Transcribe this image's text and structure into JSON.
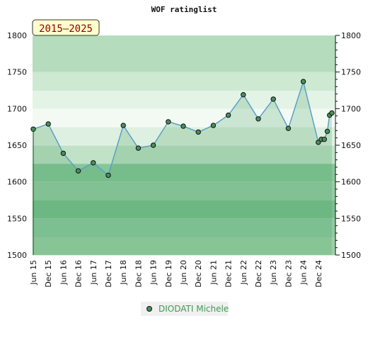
{
  "chart_data": {
    "type": "line",
    "title": "WOF ratinglist",
    "badge": "2015–2025",
    "ylim": [
      1500,
      1800
    ],
    "yticks": [
      1500,
      1550,
      1600,
      1650,
      1700,
      1750,
      1800
    ],
    "x_labels": [
      "Jun 15",
      "Dec 15",
      "Jun 16",
      "Dec 16",
      "Jun 17",
      "Dec 17",
      "Jun 18",
      "Dec 18",
      "Jun 19",
      "Dec 19",
      "Jun 20",
      "Dec 20",
      "Jun 21",
      "Dec 21",
      "Jun 22",
      "Dec 22",
      "Jun 23",
      "Dec 23",
      "Jun 24",
      "Dec 24"
    ],
    "grid": true,
    "legend_position": "bottom",
    "series": [
      {
        "name": "DIODATI Michele",
        "color": "#5aa0c8",
        "marker_color": "#4a8f5a",
        "points": [
          {
            "x": 0.0,
            "y": 1672
          },
          {
            "x": 1.0,
            "y": 1679
          },
          {
            "x": 2.0,
            "y": 1639
          },
          {
            "x": 3.0,
            "y": 1615
          },
          {
            "x": 4.0,
            "y": 1626
          },
          {
            "x": 5.0,
            "y": 1609
          },
          {
            "x": 6.0,
            "y": 1677
          },
          {
            "x": 7.0,
            "y": 1646
          },
          {
            "x": 8.0,
            "y": 1650
          },
          {
            "x": 9.0,
            "y": 1682
          },
          {
            "x": 10.0,
            "y": 1676
          },
          {
            "x": 11.0,
            "y": 1668
          },
          {
            "x": 12.0,
            "y": 1677
          },
          {
            "x": 13.0,
            "y": 1691
          },
          {
            "x": 14.0,
            "y": 1719
          },
          {
            "x": 15.0,
            "y": 1686
          },
          {
            "x": 16.0,
            "y": 1713
          },
          {
            "x": 17.0,
            "y": 1673
          },
          {
            "x": 18.0,
            "y": 1737
          },
          {
            "x": 19.0,
            "y": 1654
          },
          {
            "x": 19.2,
            "y": 1658
          },
          {
            "x": 19.4,
            "y": 1658
          },
          {
            "x": 19.6,
            "y": 1669
          },
          {
            "x": 19.75,
            "y": 1691
          },
          {
            "x": 19.9,
            "y": 1694
          }
        ]
      }
    ],
    "band_colors": [
      "#9dd0a8",
      "#8fcaa0",
      "#7cbf8f",
      "#96cca4",
      "#88c69a",
      "#c2e2c8",
      "#def0e1",
      "#f3faf4",
      "#e3f3e6",
      "#cde9d2",
      "#b4dcbd"
    ]
  }
}
